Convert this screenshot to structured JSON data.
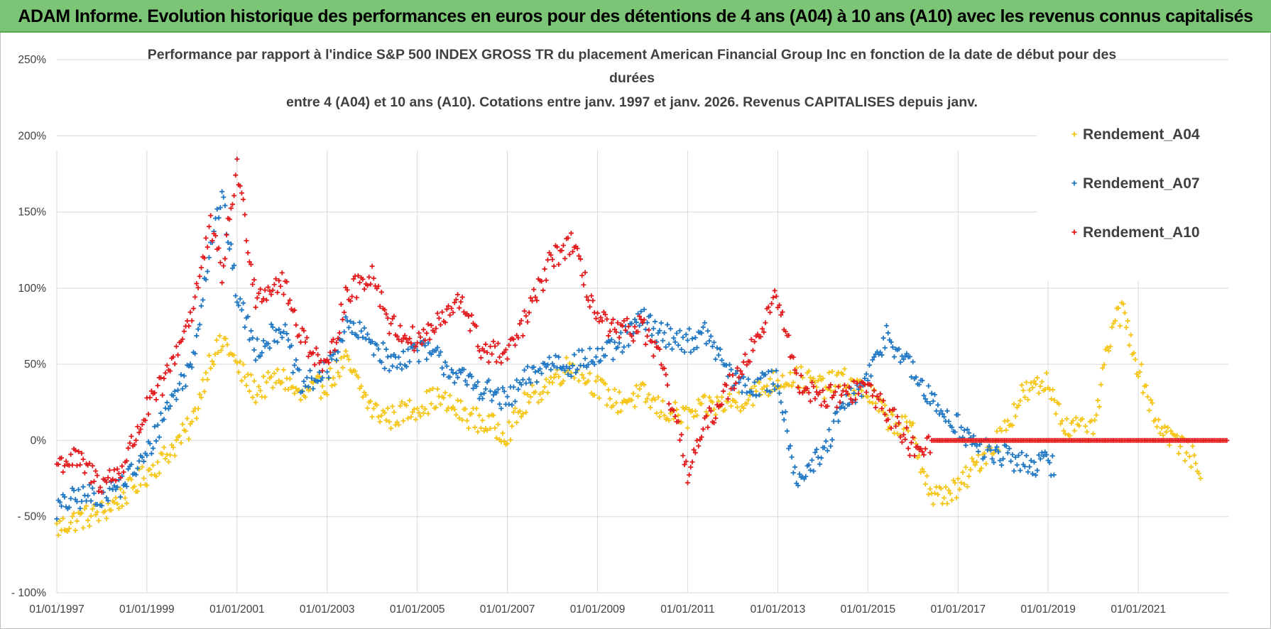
{
  "banner": {
    "title": "ADAM Informe. Evolution historique des performances en euros pour des détentions de 4 ans (A04) à 10 ans (A10) avec les revenus connus capitalisés"
  },
  "chart_data": {
    "type": "scatter",
    "title_lines": [
      "Performance par rapport à l'indice S&P 500 INDEX GROSS TR  du placement American Financial Group Inc en fonction de la date de début pour des",
      "durées",
      "entre 4 (A04) et 10 ans (A10).  Cotations entre janv. 1997 et janv. 2026. Revenus CAPITALISES  depuis janv."
    ],
    "x_ticks": [
      "01/01/1997",
      "01/01/1999",
      "01/01/2001",
      "01/01/2003",
      "01/01/2005",
      "01/01/2007",
      "01/01/2009",
      "01/01/2011",
      "01/01/2013",
      "01/01/2015",
      "01/01/2017",
      "01/01/2019",
      "01/01/2021"
    ],
    "x_range": [
      "1997-01-01",
      "2023-01-01"
    ],
    "y_ticks": [
      "250%",
      "200%",
      "150%",
      "100%",
      "50%",
      "0%",
      "- 50%",
      "- 100%"
    ],
    "y_range": [
      -100,
      250
    ],
    "y_unit": "%",
    "grid": true,
    "legend_position": "right",
    "series": [
      {
        "name": "Rendement_A04",
        "color": "#f5c518",
        "points": [
          [
            "1997-01-01",
            -58
          ],
          [
            "1997-06-01",
            -52
          ],
          [
            "1998-01-01",
            -47
          ],
          [
            "1998-06-01",
            -38
          ],
          [
            "1999-01-01",
            -22
          ],
          [
            "1999-06-01",
            -10
          ],
          [
            "2000-01-01",
            10
          ],
          [
            "2000-06-01",
            55
          ],
          [
            "2000-10-01",
            65
          ],
          [
            "2001-01-01",
            48
          ],
          [
            "2001-06-01",
            32
          ],
          [
            "2002-01-01",
            42
          ],
          [
            "2002-06-01",
            28
          ],
          [
            "2003-01-01",
            38
          ],
          [
            "2003-06-01",
            52
          ],
          [
            "2004-01-01",
            20
          ],
          [
            "2004-06-01",
            15
          ],
          [
            "2005-01-01",
            22
          ],
          [
            "2005-06-01",
            28
          ],
          [
            "2006-01-01",
            18
          ],
          [
            "2006-06-01",
            12
          ],
          [
            "2007-01-01",
            5
          ],
          [
            "2007-06-01",
            25
          ],
          [
            "2008-01-01",
            40
          ],
          [
            "2008-06-01",
            50
          ],
          [
            "2009-01-01",
            35
          ],
          [
            "2009-06-01",
            25
          ],
          [
            "2010-01-01",
            30
          ],
          [
            "2010-06-01",
            20
          ],
          [
            "2011-01-01",
            15
          ],
          [
            "2011-06-01",
            22
          ],
          [
            "2012-01-01",
            25
          ],
          [
            "2012-06-01",
            30
          ],
          [
            "2013-01-01",
            40
          ],
          [
            "2013-06-01",
            42
          ],
          [
            "2014-01-01",
            35
          ],
          [
            "2014-06-01",
            40
          ],
          [
            "2015-01-01",
            32
          ],
          [
            "2015-06-01",
            15
          ],
          [
            "2016-01-01",
            5
          ],
          [
            "2016-06-01",
            -38
          ],
          [
            "2017-01-01",
            -32
          ],
          [
            "2017-06-01",
            -15
          ],
          [
            "2018-01-01",
            5
          ],
          [
            "2018-06-01",
            30
          ],
          [
            "2019-01-01",
            38
          ],
          [
            "2019-06-01",
            8
          ],
          [
            "2020-01-01",
            5
          ],
          [
            "2020-06-01",
            75
          ],
          [
            "2020-09-01",
            85
          ],
          [
            "2021-01-01",
            48
          ],
          [
            "2021-06-01",
            12
          ],
          [
            "2022-01-01",
            -5
          ],
          [
            "2022-06-01",
            -18
          ]
        ]
      },
      {
        "name": "Rendement_A07",
        "color": "#1f77c4",
        "points": [
          [
            "1997-01-01",
            -45
          ],
          [
            "1997-06-01",
            -38
          ],
          [
            "1998-01-01",
            -35
          ],
          [
            "1998-06-01",
            -30
          ],
          [
            "1999-01-01",
            -10
          ],
          [
            "1999-06-01",
            20
          ],
          [
            "2000-01-01",
            50
          ],
          [
            "2000-06-01",
            130
          ],
          [
            "2000-09-01",
            160
          ],
          [
            "2001-01-01",
            95
          ],
          [
            "2001-06-01",
            60
          ],
          [
            "2002-01-01",
            75
          ],
          [
            "2002-06-01",
            35
          ],
          [
            "2003-01-01",
            45
          ],
          [
            "2003-06-01",
            75
          ],
          [
            "2004-01-01",
            65
          ],
          [
            "2004-06-01",
            50
          ],
          [
            "2005-01-01",
            60
          ],
          [
            "2005-06-01",
            55
          ],
          [
            "2006-01-01",
            40
          ],
          [
            "2006-06-01",
            35
          ],
          [
            "2007-01-01",
            25
          ],
          [
            "2007-06-01",
            40
          ],
          [
            "2008-01-01",
            52
          ],
          [
            "2008-06-01",
            50
          ],
          [
            "2009-01-01",
            55
          ],
          [
            "2009-06-01",
            60
          ],
          [
            "2010-01-01",
            80
          ],
          [
            "2010-06-01",
            70
          ],
          [
            "2011-01-01",
            65
          ],
          [
            "2011-06-01",
            70
          ],
          [
            "2012-01-01",
            40
          ],
          [
            "2012-06-01",
            35
          ],
          [
            "2013-01-01",
            40
          ],
          [
            "2013-06-01",
            -25
          ],
          [
            "2014-01-01",
            -10
          ],
          [
            "2014-06-01",
            20
          ],
          [
            "2015-01-01",
            40
          ],
          [
            "2015-06-01",
            70
          ],
          [
            "2016-01-01",
            45
          ],
          [
            "2016-06-01",
            25
          ],
          [
            "2017-01-01",
            10
          ],
          [
            "2017-06-01",
            -5
          ],
          [
            "2018-01-01",
            -10
          ],
          [
            "2018-06-01",
            -15
          ],
          [
            "2019-01-01",
            -15
          ],
          [
            "2019-03-01",
            -17
          ]
        ]
      },
      {
        "name": "Rendement_A10",
        "color": "#e31a1c",
        "points": [
          [
            "1997-01-01",
            -15
          ],
          [
            "1997-06-01",
            -12
          ],
          [
            "1998-01-01",
            -28
          ],
          [
            "1998-06-01",
            -20
          ],
          [
            "1999-01-01",
            20
          ],
          [
            "1999-06-01",
            40
          ],
          [
            "2000-01-01",
            85
          ],
          [
            "2000-06-01",
            140
          ],
          [
            "2000-09-01",
            110
          ],
          [
            "2001-01-01",
            180
          ],
          [
            "2001-06-01",
            95
          ],
          [
            "2002-01-01",
            105
          ],
          [
            "2002-06-01",
            70
          ],
          [
            "2003-01-01",
            45
          ],
          [
            "2003-06-01",
            95
          ],
          [
            "2004-01-01",
            110
          ],
          [
            "2004-06-01",
            75
          ],
          [
            "2005-01-01",
            65
          ],
          [
            "2005-06-01",
            75
          ],
          [
            "2006-01-01",
            92
          ],
          [
            "2006-06-01",
            60
          ],
          [
            "2007-01-01",
            55
          ],
          [
            "2007-06-01",
            80
          ],
          [
            "2008-01-01",
            120
          ],
          [
            "2008-06-01",
            130
          ],
          [
            "2009-01-01",
            80
          ],
          [
            "2009-06-01",
            70
          ],
          [
            "2010-01-01",
            75
          ],
          [
            "2010-06-01",
            50
          ],
          [
            "2011-01-01",
            -20
          ],
          [
            "2011-06-01",
            10
          ],
          [
            "2012-01-01",
            40
          ],
          [
            "2012-06-01",
            60
          ],
          [
            "2013-01-01",
            95
          ],
          [
            "2013-06-01",
            40
          ],
          [
            "2014-01-01",
            28
          ],
          [
            "2014-06-01",
            30
          ],
          [
            "2015-01-01",
            35
          ],
          [
            "2015-06-01",
            20
          ],
          [
            "2016-01-01",
            -5
          ],
          [
            "2016-06-01",
            0
          ],
          [
            "2017-01-01",
            0
          ],
          [
            "2018-01-01",
            0
          ],
          [
            "2019-01-01",
            0
          ],
          [
            "2020-01-01",
            0
          ],
          [
            "2021-01-01",
            0
          ],
          [
            "2022-01-01",
            0
          ],
          [
            "2023-01-01",
            0
          ]
        ]
      }
    ]
  }
}
